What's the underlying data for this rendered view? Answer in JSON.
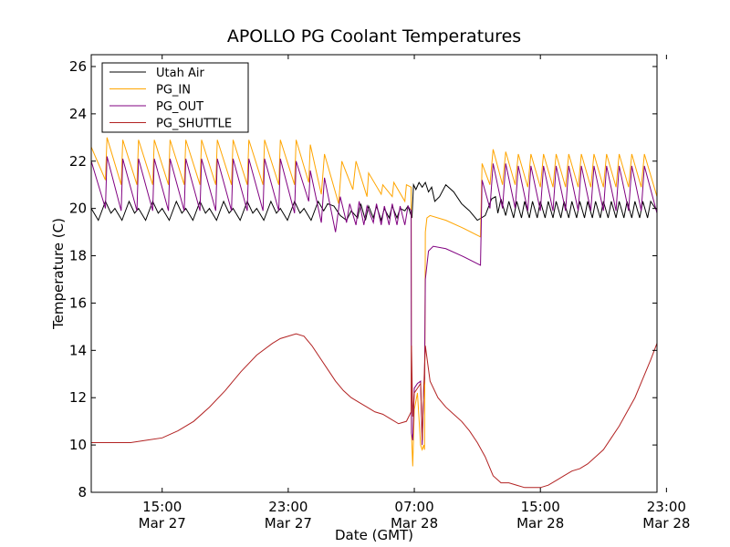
{
  "chart_data": {
    "type": "line",
    "title": "APOLLO PG Coolant Temperatures",
    "xlabel": "Date (GMT)",
    "ylabel": "Temperature (C)",
    "xlim": [
      10.5,
      46.4
    ],
    "ylim": [
      8,
      26.5
    ],
    "x_unit": "hours since Mar 27 00:00 GMT",
    "yticks": [
      8,
      10,
      12,
      14,
      16,
      18,
      20,
      22,
      24,
      26
    ],
    "xticks": [
      {
        "x": 15,
        "time": "15:00",
        "date": "Mar 27"
      },
      {
        "x": 23,
        "time": "23:00",
        "date": "Mar 27"
      },
      {
        "x": 31,
        "time": "07:00",
        "date": "Mar 28"
      },
      {
        "x": 39,
        "time": "15:00",
        "date": "Mar 28"
      },
      {
        "x": 47,
        "time": "23:00",
        "date": "Mar 28"
      }
    ],
    "legend_position": "top-left",
    "series": [
      {
        "name": "Utah Air",
        "color": "#000000",
        "x": [
          10.5,
          10.95,
          11.4,
          11.75,
          12.0,
          12.45,
          12.9,
          13.25,
          13.5,
          13.95,
          14.4,
          14.75,
          15.0,
          15.45,
          15.9,
          16.25,
          16.5,
          16.95,
          17.4,
          17.75,
          18.0,
          18.45,
          18.9,
          19.25,
          19.5,
          19.95,
          20.4,
          20.75,
          21.0,
          21.45,
          21.9,
          22.25,
          22.5,
          22.95,
          23.4,
          23.75,
          24.0,
          24.45,
          24.9,
          25.25,
          25.5,
          25.9,
          26.3,
          26.7,
          27.0,
          27.4,
          27.6,
          27.9,
          28.1,
          28.4,
          28.6,
          28.9,
          29.1,
          29.4,
          29.6,
          29.9,
          30.1,
          30.4,
          30.6,
          30.85,
          30.95,
          31.1,
          31.3,
          31.5,
          31.7,
          31.9,
          32.1,
          32.3,
          32.6,
          33.0,
          33.5,
          34.0,
          34.5,
          35.0,
          35.5,
          35.9,
          36.15,
          36.3,
          36.5,
          36.8,
          37.0,
          37.3,
          37.5,
          37.8,
          38.0,
          38.3,
          38.5,
          38.8,
          39.0,
          39.3,
          39.5,
          39.8,
          40.0,
          40.3,
          40.5,
          40.8,
          41.0,
          41.3,
          41.5,
          41.8,
          42.0,
          42.3,
          42.5,
          42.8,
          43.0,
          43.3,
          43.5,
          43.8,
          44.0,
          44.3,
          44.5,
          44.8,
          45.0,
          45.3,
          45.5,
          45.8,
          46.0,
          46.4
        ],
        "y": [
          20.0,
          19.5,
          20.3,
          19.8,
          20.0,
          19.5,
          20.3,
          19.8,
          20.0,
          19.5,
          20.3,
          19.8,
          20.0,
          19.5,
          20.3,
          19.8,
          20.0,
          19.5,
          20.3,
          19.8,
          20.0,
          19.5,
          20.3,
          19.8,
          20.0,
          19.5,
          20.3,
          19.8,
          20.0,
          19.5,
          20.3,
          19.8,
          20.0,
          19.5,
          20.3,
          19.8,
          20.0,
          19.5,
          20.3,
          19.9,
          20.2,
          20.1,
          19.7,
          19.5,
          19.9,
          19.6,
          20.2,
          19.5,
          20.1,
          19.6,
          20.1,
          19.5,
          20.0,
          19.6,
          20.1,
          19.6,
          20.0,
          19.9,
          20.1,
          19.6,
          21.0,
          20.8,
          21.1,
          20.9,
          21.1,
          20.7,
          20.9,
          20.3,
          20.5,
          21.0,
          20.7,
          20.2,
          19.9,
          19.5,
          19.7,
          20.4,
          20.5,
          19.8,
          20.4,
          19.7,
          20.3,
          19.6,
          20.3,
          19.6,
          20.3,
          19.6,
          20.3,
          19.6,
          20.3,
          19.6,
          20.3,
          19.6,
          20.3,
          19.6,
          20.3,
          19.6,
          20.3,
          19.6,
          20.3,
          19.6,
          20.3,
          19.6,
          20.3,
          19.6,
          20.3,
          19.6,
          20.3,
          19.6,
          20.3,
          19.6,
          20.3,
          19.6,
          20.3,
          19.6,
          20.3,
          19.6,
          20.3,
          19.9
        ]
      },
      {
        "name": "PG_IN",
        "color": "#ffa500",
        "x": [
          10.5,
          11.4,
          11.5,
          12.4,
          12.5,
          13.4,
          13.5,
          14.4,
          14.5,
          15.4,
          15.5,
          16.4,
          16.5,
          17.4,
          17.5,
          18.4,
          18.5,
          19.4,
          19.5,
          20.4,
          20.5,
          21.4,
          21.5,
          22.4,
          22.5,
          23.4,
          23.5,
          24.3,
          24.4,
          25.1,
          25.3,
          26.2,
          26.4,
          27.1,
          27.3,
          28.0,
          28.1,
          28.9,
          29.0,
          29.6,
          29.7,
          30.4,
          30.5,
          30.8,
          30.82,
          30.9,
          31.0,
          31.2,
          31.4,
          31.5,
          31.6,
          31.65,
          31.7,
          31.8,
          32.0,
          33.0,
          34.0,
          35.2,
          35.3,
          35.8,
          36.0,
          36.6,
          36.8,
          37.4,
          37.6,
          38.2,
          38.4,
          39.0,
          39.2,
          39.8,
          40.0,
          40.6,
          40.8,
          41.4,
          41.6,
          42.2,
          42.4,
          43.0,
          43.2,
          43.8,
          44.0,
          44.6,
          44.8,
          45.4,
          45.6,
          46.4
        ],
        "y": [
          22.6,
          21.2,
          23.0,
          21.0,
          22.9,
          21.0,
          22.9,
          21.0,
          22.9,
          21.0,
          22.9,
          21.0,
          22.9,
          21.0,
          22.9,
          21.0,
          22.9,
          21.0,
          22.9,
          21.0,
          22.9,
          21.0,
          22.9,
          21.0,
          22.9,
          21.0,
          22.9,
          21.1,
          22.7,
          20.6,
          22.3,
          20.2,
          22.0,
          20.8,
          22.0,
          20.5,
          21.5,
          20.6,
          21.0,
          20.5,
          21.1,
          20.3,
          21.0,
          20.9,
          10.5,
          9.1,
          11.5,
          12.2,
          10.0,
          9.8,
          10.0,
          9.8,
          19.0,
          19.6,
          19.7,
          19.5,
          19.2,
          18.8,
          21.9,
          21.0,
          22.5,
          21.0,
          22.4,
          21.0,
          22.3,
          20.9,
          22.3,
          20.9,
          22.3,
          20.9,
          22.3,
          20.9,
          22.3,
          20.9,
          22.3,
          20.9,
          22.3,
          20.9,
          22.3,
          20.9,
          22.3,
          20.9,
          22.3,
          20.9,
          22.3,
          20.5
        ]
      },
      {
        "name": "PG_OUT",
        "color": "#800080",
        "x": [
          10.5,
          11.4,
          11.5,
          12.4,
          12.5,
          13.4,
          13.5,
          14.4,
          14.5,
          15.4,
          15.5,
          16.4,
          16.5,
          17.4,
          17.5,
          18.4,
          18.5,
          19.4,
          19.5,
          20.4,
          20.5,
          21.4,
          21.5,
          22.4,
          22.5,
          23.4,
          23.5,
          24.3,
          24.4,
          25.1,
          25.3,
          26.0,
          26.3,
          26.7,
          26.9,
          27.3,
          27.5,
          27.8,
          28.0,
          28.4,
          28.6,
          28.9,
          29.1,
          29.4,
          29.6,
          29.9,
          30.1,
          30.4,
          30.6,
          30.8,
          30.82,
          30.9,
          31.0,
          31.2,
          31.4,
          31.5,
          31.6,
          31.65,
          31.7,
          31.9,
          32.2,
          33.0,
          34.0,
          35.2,
          35.3,
          35.8,
          36.0,
          36.6,
          36.8,
          37.4,
          37.6,
          38.2,
          38.4,
          39.0,
          39.2,
          39.8,
          40.0,
          40.6,
          40.8,
          41.4,
          41.6,
          42.2,
          42.4,
          43.0,
          43.2,
          43.8,
          44.0,
          44.6,
          44.8,
          45.4,
          45.6,
          46.4
        ],
        "y": [
          22.0,
          20.0,
          22.2,
          19.9,
          22.1,
          19.9,
          22.1,
          19.9,
          22.1,
          19.9,
          22.1,
          19.9,
          22.1,
          19.9,
          22.1,
          19.9,
          22.1,
          19.9,
          22.1,
          19.9,
          22.1,
          19.9,
          22.1,
          19.9,
          22.1,
          19.8,
          22.0,
          20.3,
          21.6,
          19.4,
          21.3,
          19.0,
          20.5,
          19.4,
          20.2,
          19.3,
          20.3,
          19.3,
          20.1,
          19.4,
          20.2,
          19.3,
          20.1,
          19.3,
          20.2,
          19.3,
          20.1,
          19.3,
          20.1,
          19.9,
          10.5,
          10.2,
          12.4,
          12.6,
          12.7,
          10.0,
          12.5,
          12.8,
          17.0,
          18.2,
          18.4,
          18.3,
          18.0,
          17.6,
          21.2,
          20.0,
          21.9,
          20.0,
          21.9,
          20.0,
          21.8,
          19.9,
          21.8,
          19.9,
          21.8,
          19.9,
          21.8,
          19.9,
          21.8,
          19.9,
          21.8,
          19.9,
          21.8,
          19.9,
          21.8,
          19.9,
          21.8,
          19.9,
          21.8,
          19.9,
          21.8,
          19.8
        ]
      },
      {
        "name": "PG_SHUTTLE",
        "color": "#b22222",
        "x": [
          10.5,
          11.0,
          12.0,
          13.0,
          14.0,
          15.0,
          16.0,
          17.0,
          18.0,
          19.0,
          20.0,
          21.0,
          22.0,
          22.5,
          23.0,
          23.5,
          24.0,
          24.5,
          25.0,
          25.5,
          26.0,
          26.5,
          27.0,
          27.5,
          28.0,
          28.5,
          29.0,
          29.5,
          30.0,
          30.5,
          30.8,
          30.82,
          30.9,
          31.0,
          31.2,
          31.4,
          31.5,
          31.6,
          31.7,
          32.0,
          32.5,
          33.0,
          33.5,
          34.0,
          34.5,
          35.0,
          35.5,
          36.0,
          36.5,
          37.0,
          37.5,
          38.0,
          38.5,
          39.0,
          39.5,
          40.0,
          40.5,
          41.0,
          41.5,
          42.0,
          42.5,
          43.0,
          43.5,
          44.0,
          44.5,
          45.0,
          45.5,
          46.0,
          46.4
        ],
        "y": [
          10.1,
          10.1,
          10.1,
          10.1,
          10.2,
          10.3,
          10.6,
          11.0,
          11.6,
          12.3,
          13.1,
          13.8,
          14.3,
          14.5,
          14.6,
          14.7,
          14.6,
          14.2,
          13.7,
          13.2,
          12.7,
          12.3,
          12.0,
          11.8,
          11.6,
          11.4,
          11.3,
          11.1,
          10.9,
          11.0,
          11.4,
          14.2,
          11.2,
          12.2,
          12.4,
          12.6,
          10.2,
          12.4,
          14.2,
          12.7,
          12.0,
          11.6,
          11.3,
          11.0,
          10.6,
          10.1,
          9.5,
          8.7,
          8.4,
          8.4,
          8.3,
          8.2,
          8.2,
          8.2,
          8.3,
          8.5,
          8.7,
          8.9,
          9.0,
          9.2,
          9.5,
          9.8,
          10.3,
          10.8,
          11.4,
          12.0,
          12.8,
          13.6,
          14.3
        ]
      }
    ]
  }
}
